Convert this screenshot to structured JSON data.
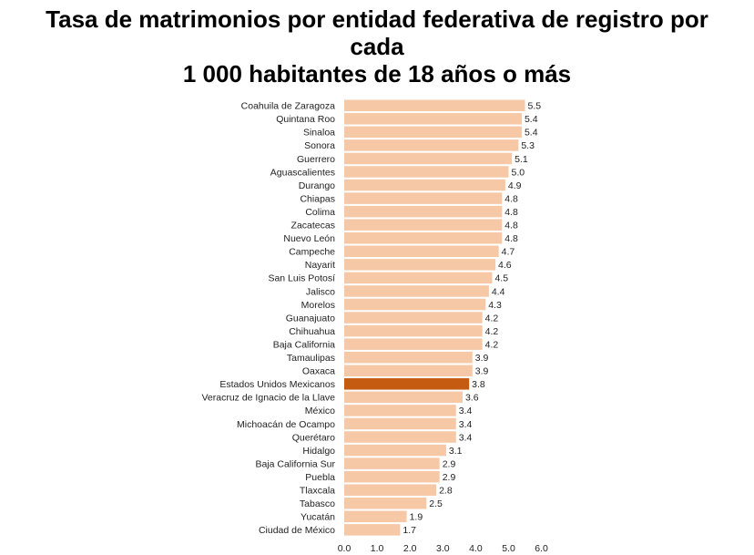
{
  "chart_data": {
    "type": "bar",
    "orientation": "horizontal",
    "title_lines": [
      "Tasa de matrimonios por entidad federativa de registro por",
      "cada",
      "1 000 habitantes de 18 años o más"
    ],
    "categories": [
      "Coahuila de Zaragoza",
      "Quintana Roo",
      "Sinaloa",
      "Sonora",
      "Guerrero",
      "Aguascalientes",
      "Durango",
      "Chiapas",
      "Colima",
      "Zacatecas",
      "Nuevo León",
      "Campeche",
      "Nayarit",
      "San Luis Potosí",
      "Jalisco",
      "Morelos",
      "Guanajuato",
      "Chihuahua",
      "Baja California",
      "Tamaulipas",
      "Oaxaca",
      "Estados Unidos Mexicanos",
      "Veracruz de Ignacio de la Llave",
      "México",
      "Michoacán de Ocampo",
      "Querétaro",
      "Hidalgo",
      "Baja California Sur",
      "Puebla",
      "Tlaxcala",
      "Tabasco",
      "Yucatán",
      "Ciudad de México"
    ],
    "values": [
      5.5,
      5.4,
      5.4,
      5.3,
      5.1,
      5.0,
      4.9,
      4.8,
      4.8,
      4.8,
      4.8,
      4.7,
      4.6,
      4.5,
      4.4,
      4.3,
      4.2,
      4.2,
      4.2,
      3.9,
      3.9,
      3.8,
      3.6,
      3.4,
      3.4,
      3.4,
      3.1,
      2.9,
      2.9,
      2.8,
      2.5,
      1.9,
      1.7
    ],
    "value_labels": [
      "5.5",
      "5.4",
      "5.4",
      "5.3",
      "5.1",
      "5.0",
      "4.9",
      "4.8",
      "4.8",
      "4.8",
      "4.8",
      "4.7",
      "4.6",
      "4.5",
      "4.4",
      "4.3",
      "4.2",
      "4.2",
      "4.2",
      "3.9",
      "3.9",
      "3.8",
      "3.6",
      "3.4",
      "3.4",
      "3.4",
      "3.1",
      "2.9",
      "2.9",
      "2.8",
      "2.5",
      "1.9",
      "1.7"
    ],
    "xlim": [
      0,
      6
    ],
    "xticks": [
      "0.0",
      "1.0",
      "2.0",
      "3.0",
      "4.0",
      "5.0",
      "6.0"
    ],
    "highlight_category": "Estados Unidos Mexicanos",
    "colors": {
      "bar": "#f6c8a6",
      "highlight": "#c55a11",
      "text": "#222222"
    },
    "grid": false,
    "legend": "none"
  }
}
